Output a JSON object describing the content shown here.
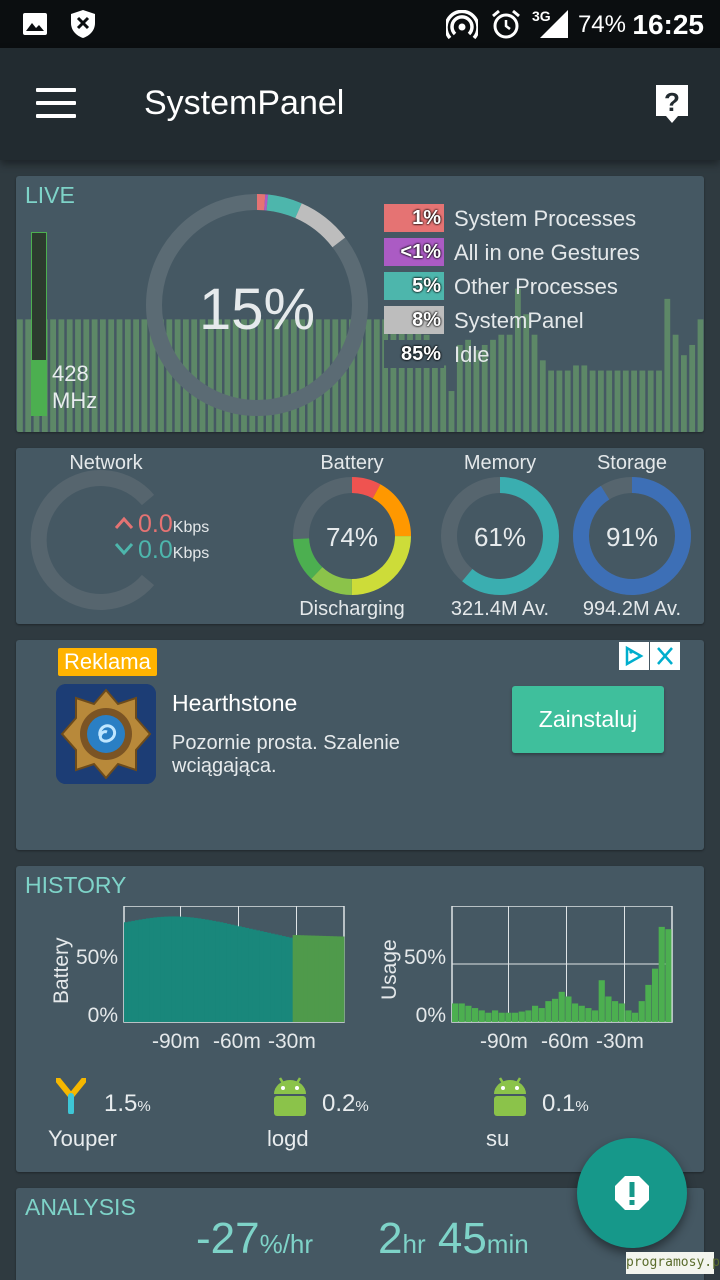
{
  "status_bar": {
    "battery_percent": "74%",
    "time": "16:25",
    "network_type": "3G",
    "icons": [
      "image-icon",
      "shield-x-icon",
      "hotspot-icon",
      "alarm-icon",
      "signal-icon"
    ]
  },
  "app_bar": {
    "title": "SystemPanel",
    "menu_icon": "hamburger-menu-icon",
    "help_icon": "help-icon"
  },
  "live": {
    "label": "LIVE",
    "cpu_total": "15%",
    "cpu_freq_value": "428",
    "cpu_freq_unit": "MHz",
    "cpu_bar_level": 0.3,
    "legend": [
      {
        "pct": "1%",
        "name": "System Processes",
        "color": "#e57373"
      },
      {
        "pct": "<1%",
        "name": "All in one Gestures",
        "color": "#ab5bc4"
      },
      {
        "pct": "5%",
        "name": "Other Processes",
        "color": "#4db6ac"
      },
      {
        "pct": "8%",
        "name": "SystemPanel",
        "color": "#bdbdbd"
      },
      {
        "pct": "85%",
        "name": "Idle",
        "color": "#455863"
      }
    ],
    "history_bars": [
      0.44,
      0.44,
      0.44,
      0.44,
      0.44,
      0.44,
      0.44,
      0.44,
      0.44,
      0.44,
      0.44,
      0.44,
      0.44,
      0.44,
      0.44,
      0.44,
      0.44,
      0.44,
      0.44,
      0.44,
      0.44,
      0.44,
      0.44,
      0.44,
      0.44,
      0.44,
      0.44,
      0.44,
      0.44,
      0.44,
      0.44,
      0.44,
      0.44,
      0.44,
      0.44,
      0.44,
      0.44,
      0.44,
      0.44,
      0.44,
      0.44,
      0.44,
      0.44,
      0.44,
      0.44,
      0.44,
      0.44,
      0.44,
      0.44,
      0.38,
      0.3,
      0.26,
      0.16,
      0.34,
      0.36,
      0.32,
      0.34,
      0.36,
      0.38,
      0.38,
      0.56,
      0.46,
      0.38,
      0.28,
      0.24,
      0.24,
      0.24,
      0.26,
      0.26,
      0.24,
      0.24,
      0.24,
      0.24,
      0.24,
      0.24,
      0.24,
      0.24,
      0.24,
      0.52,
      0.38,
      0.3,
      0.34,
      0.44
    ]
  },
  "network": {
    "title": "Network",
    "up_value": "0.0",
    "up_unit": "Kbps",
    "down_value": "0.0",
    "down_unit": "Kbps"
  },
  "battery": {
    "title": "Battery",
    "value": "74%",
    "level": 0.74,
    "status": "Discharging"
  },
  "memory": {
    "title": "Memory",
    "value": "61%",
    "level": 0.61,
    "available": "321.4M Av."
  },
  "storage": {
    "title": "Storage",
    "value": "91%",
    "level": 0.91,
    "available": "994.2M Av."
  },
  "ad": {
    "badge": "Reklama",
    "title": "Hearthstone",
    "description": "Pozornie prosta. Szalenie wciągająca.",
    "install_label": "Zainstaluj",
    "info_icon": "adchoices-icon",
    "close_icon": "close-icon"
  },
  "history": {
    "label": "HISTORY",
    "battery_chart": {
      "ylabel": "Battery",
      "y_ticks": [
        "50%",
        "0%"
      ],
      "x_ticks": [
        "-90m",
        "-60m",
        "-30m"
      ]
    },
    "usage_chart": {
      "ylabel": "Usage",
      "y_ticks": [
        "50%",
        "0%"
      ],
      "x_ticks": [
        "-90m",
        "-60m",
        "-30m"
      ]
    },
    "top_processes": [
      {
        "name": "Youper",
        "value": "1.5",
        "unit": "%",
        "icon": "youper-app-icon"
      },
      {
        "name": "logd",
        "value": "0.2",
        "unit": "%",
        "icon": "android-icon"
      },
      {
        "name": "su",
        "value": "0.1",
        "unit": "%",
        "icon": "android-icon"
      }
    ]
  },
  "analysis": {
    "label": "ANALYSIS",
    "rate_value": "-27",
    "rate_unit": "%/hr",
    "remaining_hours": "2",
    "hours_unit": "hr",
    "remaining_minutes": "45",
    "minutes_unit": "min"
  },
  "fab": {
    "icon": "alert-icon"
  },
  "watermark": {
    "text": "programosy.pl"
  }
}
